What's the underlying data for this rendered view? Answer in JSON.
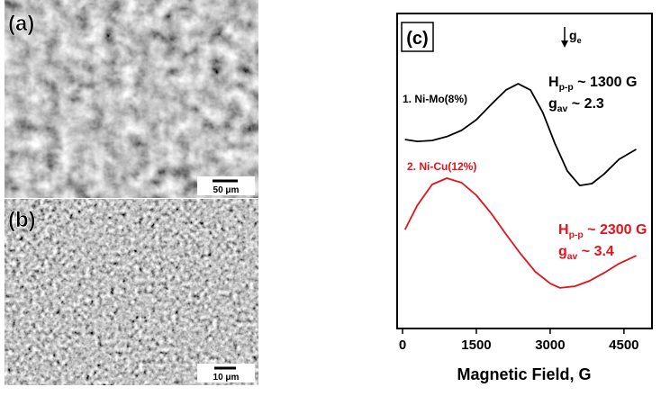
{
  "panels": [
    {
      "label": "(a)",
      "scale_bar": "50 μm"
    },
    {
      "label": "(b)",
      "scale_bar": "10 μm"
    }
  ],
  "chart_data": {
    "type": "line",
    "panel_label": "(c)",
    "x_label": "Magnetic Field, G",
    "xlim": [
      -110,
      5070
    ],
    "xticks": [
      0,
      1500,
      3000,
      4500
    ],
    "ylim": [
      0,
      100
    ],
    "series": [
      {
        "name": "1. Ni-Mo(8%)",
        "color": "#000000",
        "x": [
          50,
          300,
          600,
          900,
          1200,
          1500,
          1800,
          2100,
          2350,
          2600,
          2850,
          3100,
          3350,
          3600,
          3850,
          4100,
          4400,
          4750
        ],
        "values": [
          60,
          59.4,
          59.7,
          60.9,
          62.9,
          66.3,
          71.1,
          75.7,
          77.7,
          75.7,
          68.6,
          58.6,
          50,
          45.4,
          46,
          49.1,
          53.7,
          56.9
        ]
      },
      {
        "name": "2. Ni-Cu(12%)",
        "color": "#e3121b",
        "x": [
          50,
          300,
          600,
          900,
          1200,
          1500,
          1800,
          2100,
          2400,
          2700,
          3000,
          3200,
          3500,
          3800,
          4100,
          4400,
          4750
        ],
        "values": [
          31.4,
          39.1,
          45.7,
          47.7,
          46.3,
          42.3,
          36.6,
          30,
          23.7,
          18,
          14.3,
          12.9,
          13.4,
          15.1,
          17.7,
          20.6,
          23.1
        ]
      }
    ],
    "annotations": [
      {
        "parts": [
          "g",
          "e"
        ],
        "color": "#000000"
      },
      {
        "parts": [
          "H",
          "p-p",
          " ~ 1300 G"
        ],
        "color": "#000000"
      },
      {
        "parts": [
          "g",
          "av",
          " ~ 2.3"
        ],
        "color": "#000000"
      },
      {
        "parts": [
          "H",
          "p-p",
          " ~ 2300 G"
        ],
        "color": "#e3121b"
      },
      {
        "parts": [
          "g",
          "av",
          " ~ 3.4"
        ],
        "color": "#e3121b"
      }
    ]
  }
}
